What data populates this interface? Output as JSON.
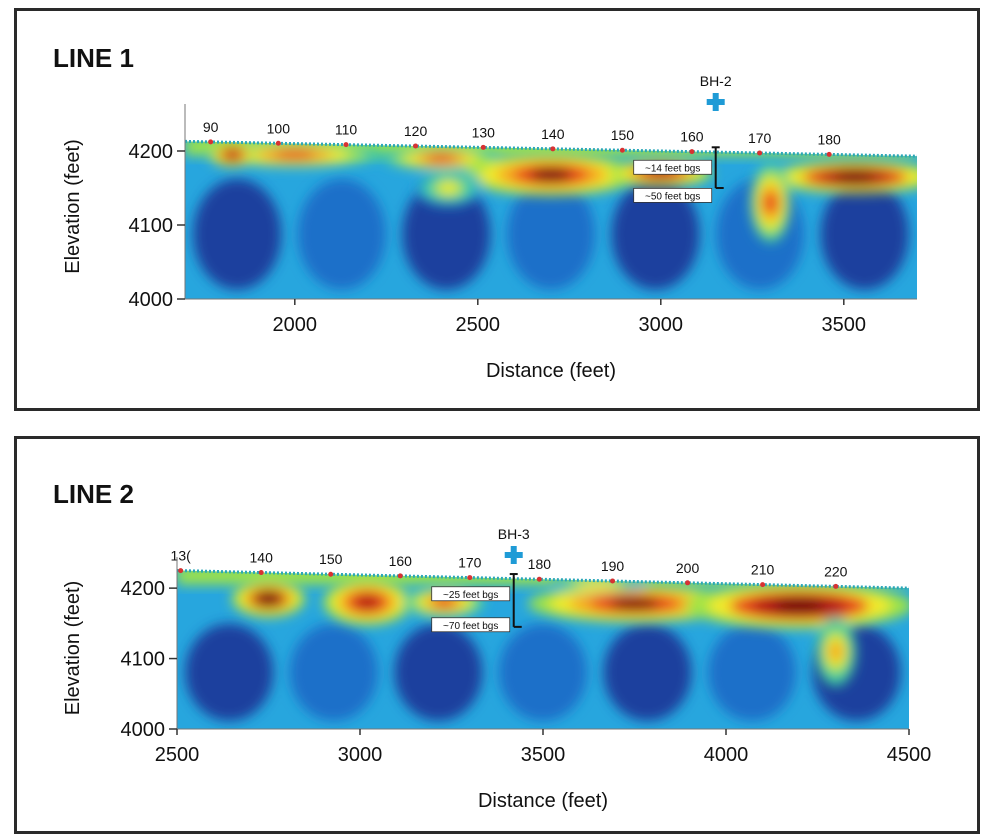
{
  "chart_data": [
    {
      "type": "heatmap",
      "title": "LINE 1",
      "xlabel": "Distance (feet)",
      "ylabel": "Elevation (feet)",
      "xlim": [
        1700,
        3700
      ],
      "ylim": [
        4000,
        4250
      ],
      "xticks": [
        2000,
        2500,
        3000,
        3500
      ],
      "yticks": [
        4000,
        4100,
        4200
      ],
      "grid": false,
      "station_labels": [
        {
          "label": "90",
          "x": 1770
        },
        {
          "label": "100",
          "x": 1955
        },
        {
          "label": "110",
          "x": 2140
        },
        {
          "label": "120",
          "x": 2330
        },
        {
          "label": "130",
          "x": 2515
        },
        {
          "label": "140",
          "x": 2705
        },
        {
          "label": "150",
          "x": 2895
        },
        {
          "label": "160",
          "x": 3085
        },
        {
          "label": "170",
          "x": 3270
        },
        {
          "label": "180",
          "x": 3460
        }
      ],
      "surface": {
        "x": [
          1700,
          3700
        ],
        "y": [
          4213,
          4193
        ]
      },
      "borehole": {
        "label": "BH-2",
        "x": 3150,
        "top": 4205,
        "bottom": 4150
      },
      "annotations": [
        {
          "text": "~14 feet bgs",
          "x": 3150,
          "y": 4178
        },
        {
          "text": "~50 feet bgs",
          "x": 3150,
          "y": 4140
        }
      ],
      "colorscale": [
        "#1b3f9e",
        "#1f6fc9",
        "#27a6de",
        "#3cc9a3",
        "#9ee346",
        "#f3ea2a",
        "#f5a623",
        "#e8401d",
        "#b01818",
        "#6b1508"
      ],
      "anomalies": [
        {
          "x": 2000,
          "y": 4195,
          "rx": 230,
          "ry": 13,
          "level": 0.82
        },
        {
          "x": 2400,
          "y": 4190,
          "rx": 150,
          "ry": 12,
          "level": 0.78
        },
        {
          "x": 2700,
          "y": 4168,
          "rx": 230,
          "ry": 24,
          "level": 0.95
        },
        {
          "x": 3000,
          "y": 4170,
          "rx": 130,
          "ry": 14,
          "level": 0.9
        },
        {
          "x": 3530,
          "y": 4165,
          "rx": 220,
          "ry": 18,
          "level": 1.0
        },
        {
          "x": 3300,
          "y": 4130,
          "rx": 45,
          "ry": 50,
          "level": 0.8
        },
        {
          "x": 2420,
          "y": 4150,
          "rx": 80,
          "ry": 20,
          "level": 0.5
        },
        {
          "x": 1830,
          "y": 4195,
          "rx": 50,
          "ry": 12,
          "level": 0.92
        }
      ]
    },
    {
      "type": "heatmap",
      "title": "LINE 2",
      "xlabel": "Distance (feet)",
      "ylabel": "Elevation (feet)",
      "xlim": [
        2500,
        4500
      ],
      "ylim": [
        4000,
        4230
      ],
      "xticks": [
        2500,
        3000,
        3500,
        4000,
        4500
      ],
      "yticks": [
        4000,
        4100,
        4200
      ],
      "grid": false,
      "station_labels": [
        {
          "label": "13(",
          "x": 2510
        },
        {
          "label": "140",
          "x": 2730
        },
        {
          "label": "150",
          "x": 2920
        },
        {
          "label": "160",
          "x": 3110
        },
        {
          "label": "170",
          "x": 3300
        },
        {
          "label": "180",
          "x": 3490
        },
        {
          "label": "190",
          "x": 3690
        },
        {
          "label": "200",
          "x": 3895
        },
        {
          "label": "210",
          "x": 4100
        },
        {
          "label": "220",
          "x": 4300
        }
      ],
      "surface": {
        "x": [
          2500,
          4500
        ],
        "y": [
          4225,
          4200
        ]
      },
      "borehole": {
        "label": "BH-3",
        "x": 3420,
        "top": 4220,
        "bottom": 4145
      },
      "annotations": [
        {
          "text": "~25 feet bgs",
          "x": 3420,
          "y": 4192
        },
        {
          "text": "~70 feet bgs",
          "x": 3420,
          "y": 4148
        }
      ],
      "colorscale": [
        "#1b3f9e",
        "#1f6fc9",
        "#27a6de",
        "#3cc9a3",
        "#9ee346",
        "#f3ea2a",
        "#f5a623",
        "#e8401d",
        "#b01818",
        "#6b1508"
      ],
      "anomalies": [
        {
          "x": 2750,
          "y": 4185,
          "rx": 90,
          "ry": 22,
          "level": 0.98
        },
        {
          "x": 3020,
          "y": 4180,
          "rx": 110,
          "ry": 28,
          "level": 0.9
        },
        {
          "x": 3230,
          "y": 4180,
          "rx": 100,
          "ry": 18,
          "level": 0.82
        },
        {
          "x": 3750,
          "y": 4178,
          "rx": 280,
          "ry": 22,
          "level": 0.96
        },
        {
          "x": 4200,
          "y": 4175,
          "rx": 300,
          "ry": 28,
          "level": 1.0
        },
        {
          "x": 4300,
          "y": 4110,
          "rx": 45,
          "ry": 45,
          "level": 0.62
        },
        {
          "x": 3650,
          "y": 4205,
          "rx": 120,
          "ry": 6,
          "level": 0.6
        }
      ]
    }
  ]
}
